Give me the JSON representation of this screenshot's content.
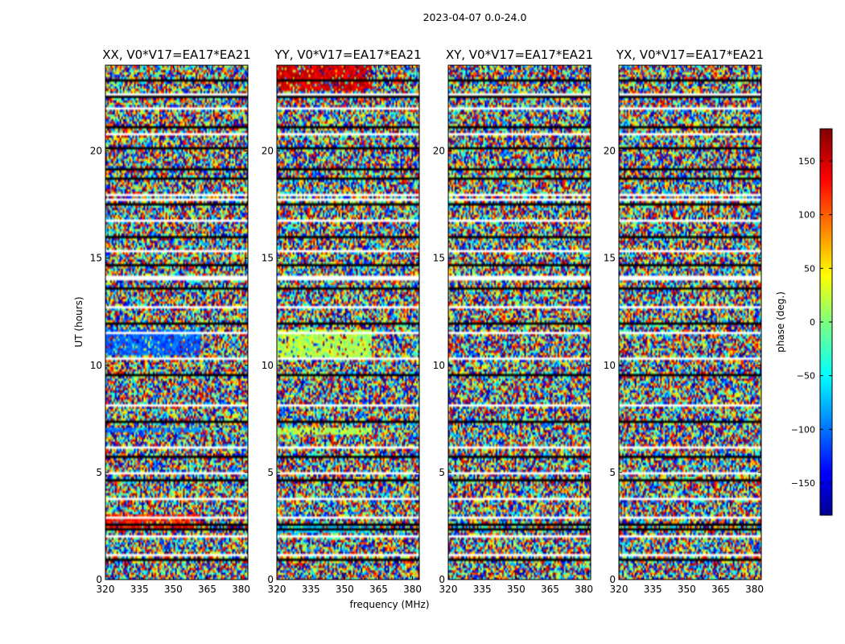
{
  "chart_data": {
    "type": "heatmap",
    "title": "2023-04-07 0.0-24.0",
    "xlabel": "frequency (MHz)",
    "ylabel": "UT (hours)",
    "xlim": [
      320,
      383
    ],
    "ylim": [
      0,
      24
    ],
    "x_ticks": [
      "320",
      "335",
      "350",
      "365",
      "380"
    ],
    "y_ticks": [
      "0",
      "5",
      "10",
      "15",
      "20"
    ],
    "panels": [
      {
        "title": "XX, V0*V17=EA17*EA21"
      },
      {
        "title": "YY, V0*V17=EA17*EA21"
      },
      {
        "title": "XY, V0*V17=EA17*EA21"
      },
      {
        "title": "YX, V0*V17=EA17*EA21"
      }
    ],
    "colorbar": {
      "label": "phase (deg.)",
      "range": [
        -180,
        180
      ],
      "ticks": [
        "150",
        "100",
        "50",
        "0",
        "−50",
        "−100",
        "−150"
      ],
      "colormap": "jet"
    }
  }
}
